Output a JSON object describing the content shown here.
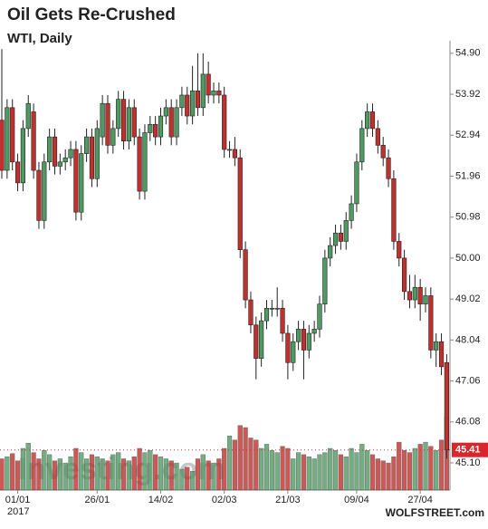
{
  "chart_data": {
    "type": "candlestick",
    "title": "Oil Gets Re-Crushed",
    "subtitle": "WTI, Daily",
    "watermark": "Investing.com",
    "source": "WOLFSTREET.com",
    "year_label": "2017",
    "categories": [
      null,
      null,
      null,
      "01/01",
      null,
      null,
      null,
      null,
      null,
      null,
      null,
      null,
      null,
      null,
      null,
      null,
      null,
      null,
      "26/01",
      null,
      null,
      null,
      null,
      null,
      null,
      null,
      null,
      null,
      null,
      null,
      "14/02",
      null,
      null,
      null,
      null,
      null,
      null,
      null,
      null,
      null,
      null,
      null,
      "02/03",
      null,
      null,
      null,
      null,
      null,
      null,
      null,
      null,
      null,
      null,
      null,
      "21/03",
      null,
      null,
      null,
      null,
      null,
      null,
      null,
      null,
      null,
      null,
      null,
      null,
      "09/04",
      null,
      null,
      null,
      null,
      null,
      null,
      null,
      null,
      null,
      null,
      null,
      "27/04",
      null,
      null,
      null,
      null,
      null
    ],
    "series": [
      {
        "name": "WTI",
        "open": [
          53.3,
          52.1,
          53.6,
          52.3,
          51.8,
          53.1,
          53.5,
          52.1,
          50.9,
          52.3,
          52.9,
          52.2,
          52.3,
          52.4,
          52.6,
          51.1,
          52.5,
          52.9,
          51.9,
          52.9,
          53.7,
          52.7,
          53.1,
          53.8,
          52.8,
          53.6,
          52.9,
          51.6,
          53.0,
          53.2,
          52.9,
          53.4,
          53.6,
          52.9,
          53.6,
          53.9,
          53.4,
          54.0,
          53.6,
          54.4,
          53.9,
          54.0,
          53.9,
          52.6,
          52.6,
          52.4,
          50.2,
          49.0,
          48.4,
          47.6,
          48.5,
          48.8,
          48.8,
          48.8,
          48.2,
          47.5,
          48.0,
          48.3,
          47.8,
          48.2,
          48.3,
          48.9,
          50.0,
          50.3,
          50.6,
          50.4,
          50.9,
          51.3,
          52.3,
          53.1,
          53.5,
          53.1,
          52.7,
          52.4,
          51.9,
          50.4,
          50.0,
          49.2,
          49.0,
          49.3,
          48.9,
          49.1,
          47.8,
          48.0,
          47.5
        ],
        "high": [
          55.0,
          53.8,
          53.8,
          52.5,
          53.3,
          53.9,
          53.7,
          52.3,
          52.5,
          53.1,
          53.1,
          52.5,
          52.6,
          52.8,
          52.8,
          52.7,
          53.1,
          53.1,
          53.3,
          53.9,
          53.9,
          53.3,
          54.0,
          54.0,
          53.8,
          53.8,
          53.1,
          53.2,
          53.4,
          53.4,
          53.6,
          53.8,
          53.8,
          53.8,
          54.1,
          54.1,
          54.6,
          54.9,
          54.9,
          54.7,
          54.2,
          54.2,
          54.1,
          52.8,
          52.9,
          52.6,
          50.4,
          49.2,
          48.6,
          48.7,
          49.0,
          49.0,
          49.3,
          49.0,
          48.4,
          48.2,
          48.5,
          48.5,
          48.4,
          48.5,
          49.1,
          50.2,
          50.5,
          50.8,
          50.8,
          51.1,
          51.5,
          52.5,
          53.3,
          53.7,
          53.7,
          53.3,
          52.9,
          52.6,
          52.1,
          50.6,
          50.2,
          49.6,
          49.6,
          49.5,
          49.3,
          49.3,
          48.2,
          48.2,
          47.7
        ],
        "low": [
          51.9,
          51.9,
          52.1,
          51.6,
          51.6,
          52.9,
          51.9,
          50.7,
          50.7,
          52.1,
          52.0,
          52.0,
          52.1,
          52.2,
          50.9,
          50.9,
          52.3,
          51.7,
          51.7,
          52.7,
          52.5,
          52.5,
          52.9,
          52.6,
          52.6,
          52.7,
          51.4,
          51.4,
          52.8,
          52.7,
          52.7,
          53.2,
          52.7,
          52.7,
          53.4,
          53.2,
          53.2,
          53.4,
          53.4,
          53.7,
          53.7,
          53.7,
          52.4,
          52.4,
          52.2,
          50.0,
          48.8,
          48.2,
          47.1,
          47.4,
          48.3,
          48.6,
          48.6,
          48.0,
          47.1,
          47.3,
          47.8,
          47.1,
          47.6,
          48.0,
          48.1,
          48.7,
          49.8,
          50.1,
          50.2,
          50.2,
          50.7,
          51.1,
          52.1,
          52.9,
          52.9,
          52.5,
          52.2,
          51.7,
          50.2,
          49.8,
          49.0,
          48.8,
          48.8,
          48.5,
          48.7,
          47.6,
          47.4,
          47.2,
          45.2
        ],
        "close": [
          52.1,
          53.6,
          52.3,
          51.8,
          53.1,
          53.7,
          52.1,
          50.9,
          52.3,
          52.9,
          52.2,
          52.3,
          52.4,
          52.6,
          51.1,
          52.5,
          52.9,
          51.9,
          53.1,
          53.7,
          52.7,
          53.1,
          53.8,
          52.8,
          53.6,
          52.9,
          51.6,
          53.0,
          53.2,
          52.9,
          53.4,
          53.6,
          52.9,
          53.6,
          53.9,
          53.4,
          54.0,
          53.6,
          54.4,
          53.9,
          54.0,
          53.9,
          52.6,
          52.6,
          52.4,
          50.2,
          49.0,
          48.4,
          47.6,
          48.5,
          48.8,
          48.8,
          48.8,
          48.2,
          47.5,
          48.0,
          48.3,
          47.8,
          48.2,
          48.3,
          48.9,
          50.0,
          50.3,
          50.6,
          50.4,
          50.9,
          51.3,
          52.3,
          53.1,
          53.5,
          53.1,
          52.7,
          52.4,
          51.9,
          50.4,
          50.0,
          49.2,
          49.0,
          49.3,
          48.9,
          49.1,
          47.8,
          48.0,
          47.4,
          45.41
        ],
        "volume": [
          30,
          32,
          35,
          28,
          40,
          45,
          36,
          30,
          38,
          34,
          28,
          30,
          26,
          32,
          40,
          36,
          30,
          34,
          32,
          30,
          28,
          34,
          36,
          30,
          28,
          32,
          40,
          36,
          38,
          34,
          32,
          30,
          28,
          26,
          20,
          22,
          18,
          30,
          34,
          28,
          26,
          30,
          40,
          52,
          48,
          62,
          60,
          50,
          48,
          40,
          44,
          38,
          36,
          42,
          40,
          30,
          36,
          34,
          32,
          30,
          34,
          36,
          40,
          38,
          34,
          32,
          40,
          36,
          44,
          38,
          34,
          30,
          28,
          26,
          32,
          46,
          38,
          36,
          40,
          44,
          46,
          42,
          38,
          48,
          70
        ]
      }
    ],
    "up_color": "#4f9a62",
    "down_color": "#c0302c",
    "last_price": 45.41,
    "ylim": [
      44.45,
      55.2
    ],
    "yticks": [
      {
        "value": 54.9,
        "label": "54.90"
      },
      53.92,
      52.94,
      51.96,
      50.98,
      {
        "value": 50,
        "label": "50.00"
      },
      49.02,
      48.04,
      47.06,
      46.08,
      {
        "value": 45.1,
        "label": "45.10"
      }
    ]
  }
}
